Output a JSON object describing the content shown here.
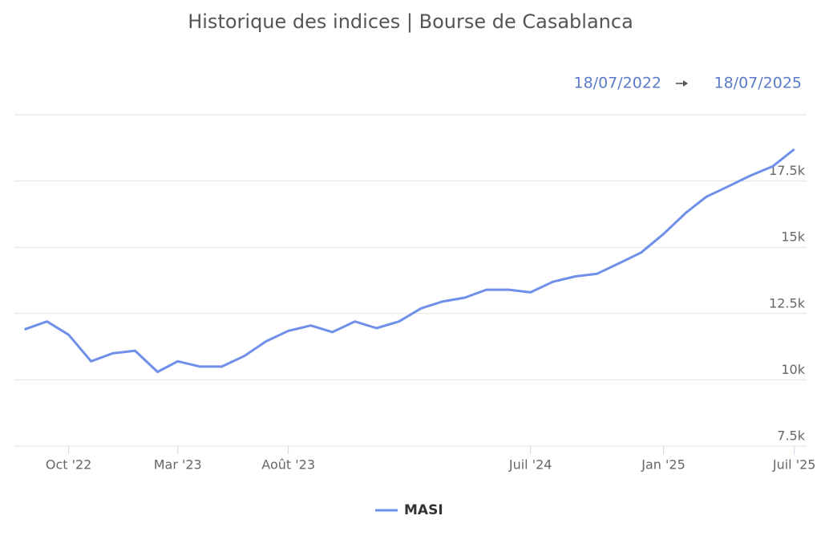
{
  "chart_data": {
    "type": "line",
    "title": "Historique des indices | Bourse de Casablanca",
    "date_range": [
      "18/07/2022",
      "18/07/2025"
    ],
    "x": [
      "2022-08",
      "2022-09",
      "2022-10",
      "2022-11",
      "2022-12",
      "2023-01",
      "2023-02",
      "2023-03",
      "2023-04",
      "2023-05",
      "2023-06",
      "2023-07",
      "2023-08",
      "2023-09",
      "2023-10",
      "2023-11",
      "2023-12",
      "2024-01",
      "2024-02",
      "2024-03",
      "2024-04",
      "2024-05",
      "2024-06",
      "2024-07",
      "2024-08",
      "2024-09",
      "2024-10",
      "2024-11",
      "2024-12",
      "2025-01",
      "2025-02",
      "2025-03",
      "2025-04",
      "2025-05",
      "2025-06",
      "2025-07"
    ],
    "series": [
      {
        "name": "MASI",
        "color": "#6f8fe8",
        "values": [
          11900,
          12200,
          11700,
          10700,
          11000,
          11100,
          10300,
          10700,
          10500,
          10500,
          10900,
          11450,
          11850,
          12050,
          11800,
          12200,
          11950,
          12200,
          12700,
          12950,
          13100,
          13400,
          13400,
          13300,
          13700,
          13900,
          14000,
          14400,
          14800,
          15500,
          16300,
          16900,
          17300,
          17700,
          18050,
          18700
        ]
      }
    ],
    "ylim": [
      7500,
      20000
    ],
    "yticks": [
      {
        "value": 7500,
        "label": "7.5k"
      },
      {
        "value": 10000,
        "label": "10k"
      },
      {
        "value": 12500,
        "label": "12.5k"
      },
      {
        "value": 15000,
        "label": "15k"
      },
      {
        "value": 17500,
        "label": "17.5k"
      }
    ],
    "xticks": [
      {
        "value": "2022-10",
        "label": "Oct '22"
      },
      {
        "value": "2023-03",
        "label": "Mar '23"
      },
      {
        "value": "2023-08",
        "label": "Août '23"
      },
      {
        "value": "2024-07",
        "label": "Juil '24"
      },
      {
        "value": "2025-01",
        "label": "Jan '25"
      },
      {
        "value": "2025-07",
        "label": "Juil '25"
      }
    ],
    "grid": true,
    "legend": "bottom"
  }
}
